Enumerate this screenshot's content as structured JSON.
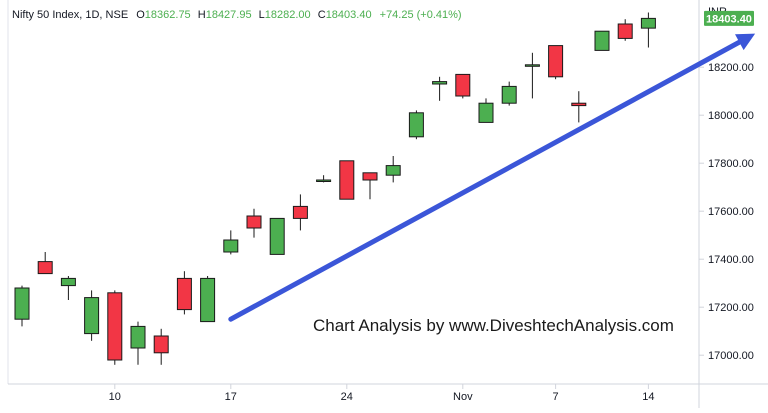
{
  "header": {
    "symbol": "Nifty 50 Index, 1D, NSE",
    "o_label": "O",
    "o_value": "18362.75",
    "h_label": "H",
    "h_value": "18427.95",
    "l_label": "L",
    "l_value": "18282.00",
    "c_label": "C",
    "c_value": "18403.40",
    "change": "+74.25 (+0.41%)"
  },
  "currency_label": "INR",
  "price_badge": "18403.40",
  "watermark": "Chart Analysis by www.DiveshtechAnalysis.com",
  "colors": {
    "up": "#4caf50",
    "down": "#f23645",
    "trend_arrow": "#3b56d8",
    "axis_text": "#131722",
    "badge": "#4caf50"
  },
  "chart_data": {
    "type": "candlestick",
    "y_axis": {
      "min": 16880,
      "max": 18480,
      "ticks": [
        17000,
        17200,
        17400,
        17600,
        17800,
        18000,
        18200
      ],
      "tick_labels": [
        "17000.00",
        "17200.00",
        "17400.00",
        "17600.00",
        "17800.00",
        "18000.00",
        "18200.00"
      ]
    },
    "x_axis": {
      "tick_labels": [
        {
          "label": "10",
          "at": 4
        },
        {
          "label": "17",
          "at": 9
        },
        {
          "label": "24",
          "at": 14
        },
        {
          "label": "Nov",
          "at": 19
        },
        {
          "label": "7",
          "at": 23
        },
        {
          "label": "14",
          "at": 27
        }
      ]
    },
    "candles": [
      {
        "o": 17150,
        "h": 17290,
        "l": 17120,
        "c": 17280
      },
      {
        "o": 17390,
        "h": 17430,
        "l": 17340,
        "c": 17340
      },
      {
        "o": 17290,
        "h": 17330,
        "l": 17230,
        "c": 17320
      },
      {
        "o": 17090,
        "h": 17270,
        "l": 17060,
        "c": 17240
      },
      {
        "o": 17260,
        "h": 17270,
        "l": 16960,
        "c": 16980
      },
      {
        "o": 17030,
        "h": 17140,
        "l": 16960,
        "c": 17120
      },
      {
        "o": 17080,
        "h": 17110,
        "l": 16960,
        "c": 17010
      },
      {
        "o": 17320,
        "h": 17350,
        "l": 17170,
        "c": 17190
      },
      {
        "o": 17140,
        "h": 17330,
        "l": 17140,
        "c": 17320
      },
      {
        "o": 17430,
        "h": 17520,
        "l": 17420,
        "c": 17480
      },
      {
        "o": 17580,
        "h": 17610,
        "l": 17490,
        "c": 17530
      },
      {
        "o": 17420,
        "h": 17570,
        "l": 17420,
        "c": 17570
      },
      {
        "o": 17620,
        "h": 17670,
        "l": 17520,
        "c": 17570
      },
      {
        "o": 17730,
        "h": 17750,
        "l": 17720,
        "c": 17730
      },
      {
        "o": 17810,
        "h": 17810,
        "l": 17650,
        "c": 17650
      },
      {
        "o": 17760,
        "h": 17760,
        "l": 17650,
        "c": 17730
      },
      {
        "o": 17750,
        "h": 17830,
        "l": 17720,
        "c": 17790
      },
      {
        "o": 17910,
        "h": 18020,
        "l": 17900,
        "c": 18010
      },
      {
        "o": 18130,
        "h": 18160,
        "l": 18060,
        "c": 18140
      },
      {
        "o": 18170,
        "h": 18170,
        "l": 18070,
        "c": 18080
      },
      {
        "o": 17970,
        "h": 18070,
        "l": 17970,
        "c": 18050
      },
      {
        "o": 18050,
        "h": 18140,
        "l": 18040,
        "c": 18120
      },
      {
        "o": 18210,
        "h": 18260,
        "l": 18070,
        "c": 18210
      },
      {
        "o": 18290,
        "h": 18290,
        "l": 18150,
        "c": 18160
      },
      {
        "o": 18050,
        "h": 18100,
        "l": 17970,
        "c": 18040
      },
      {
        "o": 18270,
        "h": 18350,
        "l": 18270,
        "c": 18350
      },
      {
        "o": 18380,
        "h": 18400,
        "l": 18310,
        "c": 18320
      },
      {
        "o": 18362.75,
        "h": 18427.95,
        "l": 18282.0,
        "c": 18403.4
      }
    ],
    "trend_arrow": {
      "from": {
        "index": 9,
        "value": 17150
      },
      "to": {
        "index": 31.6,
        "value": 18340
      }
    }
  }
}
